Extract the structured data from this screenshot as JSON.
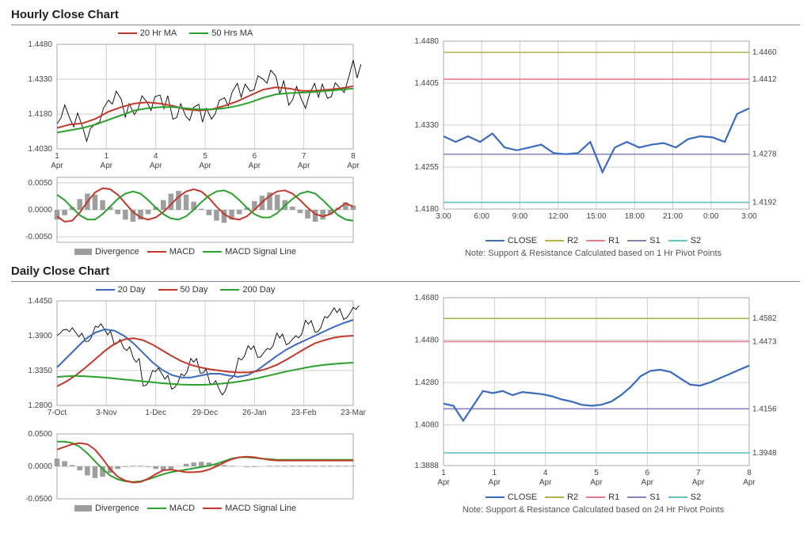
{
  "colors": {
    "red": "#c0392b",
    "green": "#2ca02c",
    "blue": "#3b6bbf",
    "greyBar": "#9e9e9e",
    "black": "#000000",
    "olive": "#b3b34d",
    "pink": "#e77d8c",
    "purple": "#8c7fbf",
    "cyan": "#66c2c2",
    "grid": "#d0d0d0",
    "text": "#444444"
  },
  "hourly": {
    "title": "Hourly Close Chart",
    "main": {
      "legend": [
        {
          "label": "20 Hr MA",
          "color": "#c0392b"
        },
        {
          "label": "50 Hrs MA",
          "color": "#2ca02c"
        }
      ],
      "ylim": [
        1.403,
        1.448
      ],
      "yticks": [
        1.403,
        1.418,
        1.433,
        1.448
      ],
      "xticks": [
        "1 Apr 0:00",
        "1 Apr 20:00",
        "4 Apr 16:00",
        "5 Apr 12:00",
        "6 Apr 8:00",
        "7 Apr 4:00",
        "8 Apr 0:00"
      ],
      "price": [
        1.418,
        1.416,
        1.408,
        1.418,
        1.424,
        1.42,
        1.422,
        1.423,
        1.422,
        1.42,
        1.417,
        1.418,
        1.42,
        1.425,
        1.427,
        1.432,
        1.433,
        1.43,
        1.426,
        1.424,
        1.427,
        1.429,
        1.429,
        1.437
      ],
      "ma20": [
        1.412,
        1.4135,
        1.414,
        1.416,
        1.419,
        1.421,
        1.4225,
        1.423,
        1.4225,
        1.4215,
        1.42,
        1.4195,
        1.42,
        1.4215,
        1.4235,
        1.426,
        1.4285,
        1.4295,
        1.429,
        1.428,
        1.428,
        1.4285,
        1.429,
        1.43
      ],
      "ma50": [
        1.41,
        1.411,
        1.412,
        1.4135,
        1.4155,
        1.4175,
        1.4195,
        1.4205,
        1.421,
        1.421,
        1.4205,
        1.42,
        1.42,
        1.4205,
        1.4215,
        1.423,
        1.425,
        1.4265,
        1.427,
        1.4272,
        1.4275,
        1.428,
        1.4285,
        1.429
      ]
    },
    "macd": {
      "legend": [
        {
          "label": "Divergence",
          "color": "#9e9e9e",
          "type": "bar"
        },
        {
          "label": "MACD",
          "color": "#c0392b",
          "type": "line"
        },
        {
          "label": "MACD Signal Line",
          "color": "#2ca02c",
          "type": "line"
        }
      ],
      "ylim": [
        -0.006,
        0.006
      ],
      "yticks": [
        -0.005,
        0.0,
        0.005
      ],
      "hist": [
        -0.0018,
        -0.001,
        0.0005,
        0.002,
        0.003,
        0.0028,
        0.0018,
        0.0005,
        -0.0008,
        -0.0018,
        -0.0022,
        -0.0018,
        -0.0008,
        0.0005,
        0.0018,
        0.003,
        0.0035,
        0.0028,
        0.0015,
        0.0002,
        -0.001,
        -0.002,
        -0.0024,
        -0.0018,
        -0.0008,
        0.0004,
        0.0016,
        0.0026,
        0.0032,
        0.0028,
        0.0018,
        0.0006,
        -0.0006,
        -0.0016,
        -0.0022,
        -0.0018,
        -0.0008,
        0.0004,
        0.0014,
        0.0008
      ],
      "macdLine": [
        -0.0012,
        -0.0022,
        -0.002,
        -0.0005,
        0.0015,
        0.0032,
        0.004,
        0.0038,
        0.0028,
        0.0012,
        -0.0004,
        -0.0014,
        -0.0018,
        -0.0014,
        -0.0004,
        0.001,
        0.0024,
        0.0034,
        0.0038,
        0.0034,
        0.0022,
        0.0006,
        -0.0008,
        -0.0016,
        -0.0018,
        -0.0012,
        0.0,
        0.0014,
        0.0026,
        0.0034,
        0.0036,
        0.003,
        0.0018,
        0.0004,
        -0.0008,
        -0.0012,
        -0.0008,
        0.0002,
        0.0012,
        0.0006
      ],
      "signal": [
        0.0028,
        0.0018,
        0.0004,
        -0.001,
        -0.0018,
        -0.0018,
        -0.0008,
        0.0006,
        0.002,
        0.003,
        0.0034,
        0.003,
        0.0018,
        0.0004,
        -0.0008,
        -0.0016,
        -0.0018,
        -0.0012,
        0.0,
        0.0014,
        0.0026,
        0.0034,
        0.0036,
        0.003,
        0.0018,
        0.0004,
        -0.0008,
        -0.0014,
        -0.0014,
        -0.0006,
        0.0008,
        0.002,
        0.003,
        0.0034,
        0.003,
        0.0018,
        0.0004,
        -0.001,
        -0.0018,
        -0.002
      ]
    },
    "sr": {
      "legend": [
        {
          "label": "CLOSE",
          "color": "#3b6bbf"
        },
        {
          "label": "R2",
          "color": "#b3b34d"
        },
        {
          "label": "R1",
          "color": "#e77d8c"
        },
        {
          "label": "S1",
          "color": "#8c7fbf"
        },
        {
          "label": "S2",
          "color": "#66c2c2"
        }
      ],
      "ylim": [
        1.418,
        1.448
      ],
      "yticks": [
        1.418,
        1.4255,
        1.433,
        1.4405,
        1.448
      ],
      "xticks": [
        "3:00",
        "6:00",
        "9:00",
        "12:00",
        "15:00",
        "18:00",
        "21:00",
        "0:00",
        "3:00"
      ],
      "levels": {
        "R2": 1.446,
        "R1": 1.4412,
        "S1": 1.4278,
        "S2": 1.4192
      },
      "close": [
        1.431,
        1.43,
        1.431,
        1.43,
        1.4315,
        1.429,
        1.4285,
        1.429,
        1.4295,
        1.428,
        1.4278,
        1.428,
        1.43,
        1.4246,
        1.429,
        1.43,
        1.429,
        1.4295,
        1.4298,
        1.429,
        1.4305,
        1.431,
        1.4308,
        1.43,
        1.435,
        1.436
      ],
      "note": "Note: Support & Resistance Calculated based on 1 Hr Pivot Points"
    }
  },
  "daily": {
    "title": "Daily Close Chart",
    "main": {
      "legend": [
        {
          "label": "20 Day",
          "color": "#3b6bbf"
        },
        {
          "label": "50 Day",
          "color": "#c0392b"
        },
        {
          "label": "200 Day",
          "color": "#2ca02c"
        }
      ],
      "ylim": [
        1.28,
        1.445
      ],
      "yticks": [
        1.28,
        1.335,
        1.39,
        1.445
      ],
      "xticks": [
        "7-Oct",
        "3-Nov",
        "1-Dec",
        "29-Dec",
        "26-Jan",
        "23-Feb",
        "23-Mar"
      ],
      "price": [
        1.395,
        1.4,
        1.39,
        1.385,
        1.405,
        1.395,
        1.38,
        1.37,
        1.35,
        1.315,
        1.335,
        1.325,
        1.31,
        1.33,
        1.35,
        1.335,
        1.315,
        1.3,
        1.325,
        1.355,
        1.37,
        1.36,
        1.37,
        1.39,
        1.38,
        1.39,
        1.41,
        1.4,
        1.42,
        1.43,
        1.42,
        1.435
      ],
      "ma20": [
        1.34,
        1.355,
        1.37,
        1.385,
        1.395,
        1.4,
        1.398,
        1.39,
        1.378,
        1.363,
        1.348,
        1.336,
        1.328,
        1.324,
        1.324,
        1.327,
        1.33,
        1.33,
        1.327,
        1.325,
        1.328,
        1.336,
        1.347,
        1.358,
        1.368,
        1.376,
        1.383,
        1.39,
        1.397,
        1.404,
        1.41,
        1.415
      ],
      "ma50": [
        1.31,
        1.318,
        1.328,
        1.34,
        1.353,
        1.366,
        1.377,
        1.384,
        1.386,
        1.383,
        1.376,
        1.367,
        1.358,
        1.35,
        1.344,
        1.34,
        1.337,
        1.335,
        1.333,
        1.332,
        1.332,
        1.334,
        1.338,
        1.344,
        1.352,
        1.361,
        1.37,
        1.378,
        1.383,
        1.387,
        1.389,
        1.39
      ],
      "ma200": [
        1.325,
        1.326,
        1.3265,
        1.326,
        1.325,
        1.324,
        1.3225,
        1.321,
        1.3195,
        1.318,
        1.3165,
        1.315,
        1.314,
        1.313,
        1.3125,
        1.3125,
        1.313,
        1.314,
        1.3155,
        1.3175,
        1.32,
        1.323,
        1.3265,
        1.33,
        1.3335,
        1.3365,
        1.3395,
        1.342,
        1.344,
        1.3455,
        1.3465,
        1.3475
      ]
    },
    "macd": {
      "legend": [
        {
          "label": "Divergence",
          "color": "#9e9e9e",
          "type": "bar"
        },
        {
          "label": "MACD",
          "color": "#2ca02c",
          "type": "line"
        },
        {
          "label": "MACD Signal Line",
          "color": "#c0392b",
          "type": "line"
        }
      ],
      "ylim": [
        -0.05,
        0.05
      ],
      "yticks": [
        -0.05,
        0.0,
        0.05
      ],
      "hist": [
        0.012,
        0.008,
        0.002,
        -0.006,
        -0.014,
        -0.018,
        -0.016,
        -0.01,
        -0.004,
        -0.001,
        0.001,
        0.001,
        -0.001,
        -0.004,
        -0.006,
        -0.004,
        0.0,
        0.004,
        0.006,
        0.007,
        0.006,
        0.004,
        0.002,
        0.001,
        0.0,
        -0.001,
        -0.001,
        0.0,
        0.001,
        0.001,
        0.001,
        0.001,
        0.001,
        0.001,
        0.001,
        0.001,
        0.001,
        0.001,
        0.001,
        0.001
      ],
      "macdLine": [
        0.038,
        0.038,
        0.036,
        0.03,
        0.02,
        0.008,
        -0.004,
        -0.014,
        -0.02,
        -0.023,
        -0.024,
        -0.023,
        -0.02,
        -0.016,
        -0.012,
        -0.009,
        -0.007,
        -0.005,
        -0.003,
        -0.001,
        0.001,
        0.004,
        0.008,
        0.012,
        0.014,
        0.014,
        0.013,
        0.012,
        0.011,
        0.01,
        0.01,
        0.01,
        0.01,
        0.01,
        0.01,
        0.01,
        0.01,
        0.01,
        0.01,
        0.01
      ],
      "signal": [
        0.026,
        0.03,
        0.034,
        0.036,
        0.034,
        0.026,
        0.012,
        -0.004,
        -0.016,
        -0.022,
        -0.025,
        -0.024,
        -0.019,
        -0.012,
        -0.006,
        -0.005,
        -0.007,
        -0.009,
        -0.009,
        -0.008,
        -0.005,
        0.0,
        0.006,
        0.011,
        0.014,
        0.015,
        0.014,
        0.012,
        0.01,
        0.009,
        0.009,
        0.009,
        0.009,
        0.009,
        0.009,
        0.009,
        0.009,
        0.009,
        0.009,
        0.009
      ]
    },
    "sr": {
      "legend": [
        {
          "label": "CLOSE",
          "color": "#3b6bbf"
        },
        {
          "label": "R2",
          "color": "#b3b34d"
        },
        {
          "label": "R1",
          "color": "#e77d8c"
        },
        {
          "label": "S1",
          "color": "#8c7fbf"
        },
        {
          "label": "S2",
          "color": "#66c2c2"
        }
      ],
      "ylim": [
        1.3888,
        1.468
      ],
      "yticks": [
        1.3888,
        1.408,
        1.428,
        1.448,
        1.468
      ],
      "xticks": [
        "1 Apr 0:00",
        "1 Apr 20:00",
        "4 Apr 16:00",
        "5 Apr 12:00",
        "6 Apr 8:00",
        "7 Apr 4:00",
        "8 Apr 0:00"
      ],
      "levels": {
        "R2": 1.4582,
        "R1": 1.4473,
        "S1": 1.4156,
        "S2": 1.3948
      },
      "close": [
        1.418,
        1.417,
        1.41,
        1.417,
        1.424,
        1.423,
        1.424,
        1.422,
        1.4235,
        1.423,
        1.4225,
        1.4215,
        1.42,
        1.419,
        1.4175,
        1.417,
        1.4175,
        1.419,
        1.422,
        1.426,
        1.431,
        1.4335,
        1.434,
        1.433,
        1.43,
        1.427,
        1.4265,
        1.428,
        1.43,
        1.432,
        1.434,
        1.436
      ],
      "note": "Note: Support & Resistance Calculated based on 24 Hr Pivot Points"
    }
  }
}
